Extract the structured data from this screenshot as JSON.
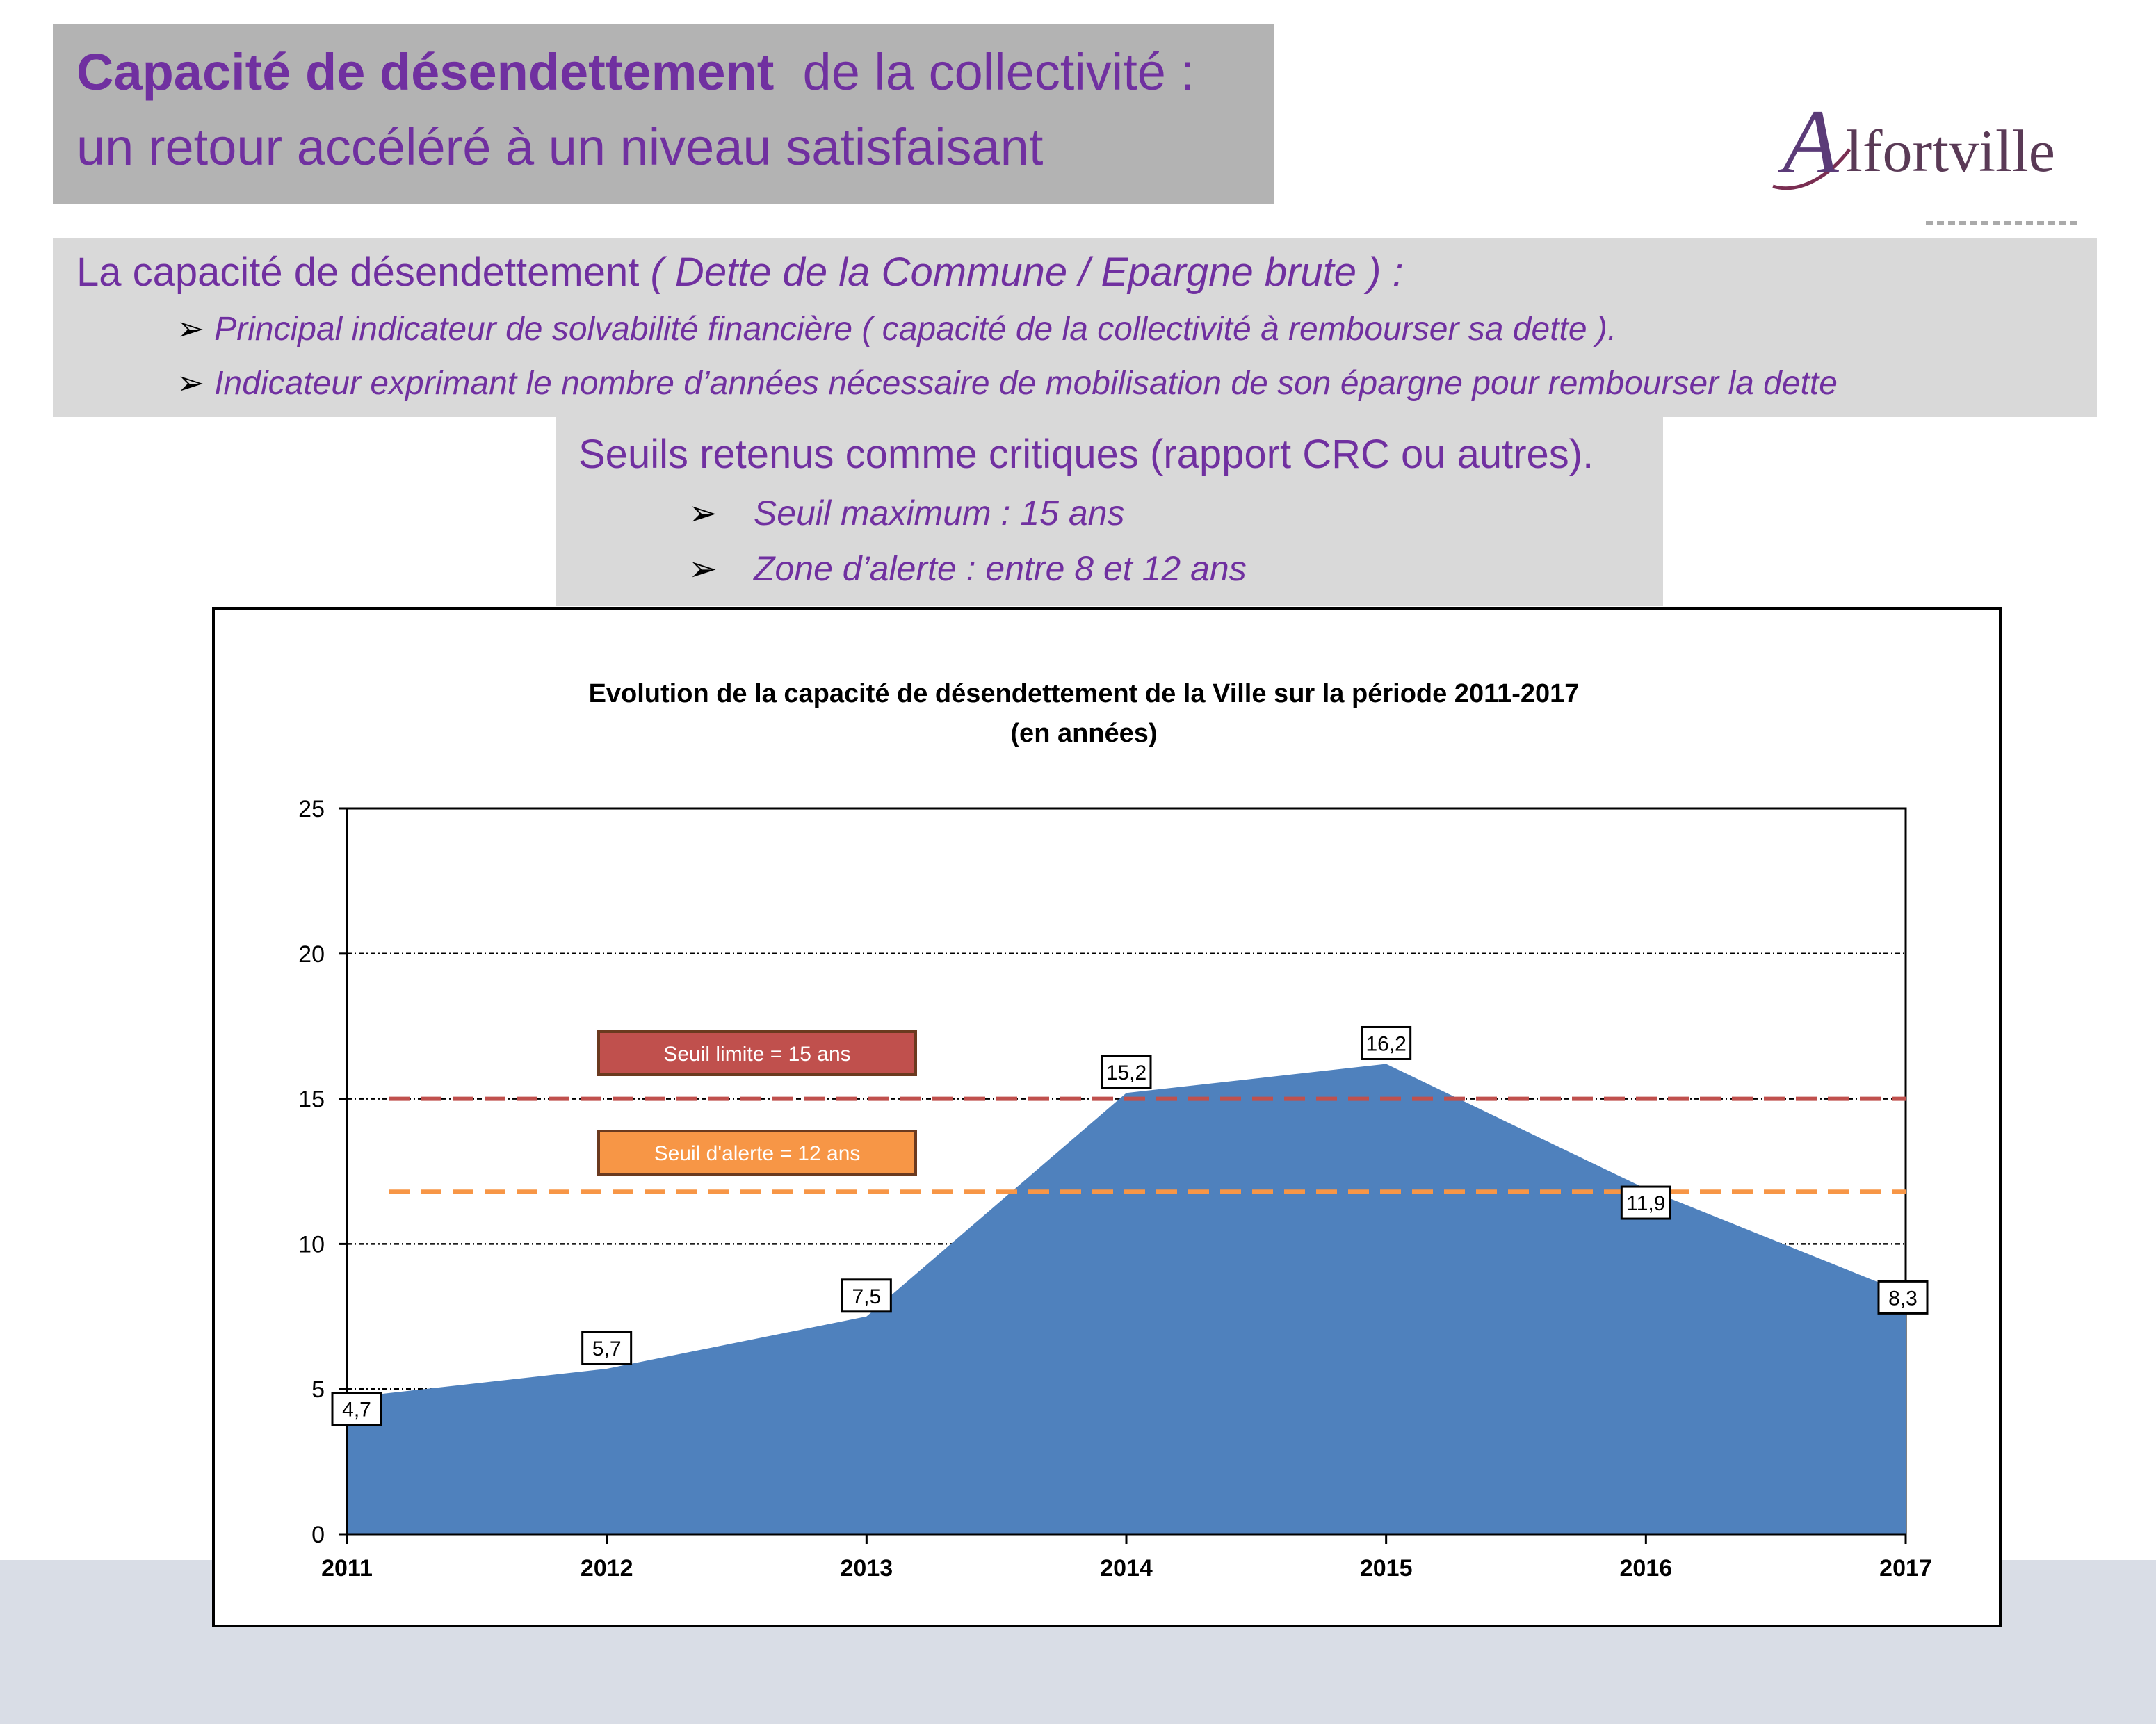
{
  "header": {
    "title_bold": "Capacité de désendettement",
    "title_rest": "de la collectivité :",
    "title_line2": "un retour accéléré à un niveau satisfaisant"
  },
  "logo": {
    "initial": "A",
    "rest": "lfortville"
  },
  "definition": {
    "lead": "La capacité de désendettement",
    "formula": "( Dette de la Commune / Epargne brute )  :",
    "bullets": [
      "Principal indicateur de solvabilité financière ( capacité de la collectivité à rembourser sa dette ).",
      "Indicateur exprimant le nombre d’années nécessaire de mobilisation de son épargne pour rembourser la dette"
    ]
  },
  "thresholds": {
    "heading": "Seuils retenus comme critiques (rapport CRC ou autres).",
    "items": [
      "Seuil maximum : 15 ans",
      "Zone d’alerte : entre 8 et 12 ans"
    ]
  },
  "chart_data": {
    "type": "area",
    "title": "Evolution de la capacité de désendettement de la Ville sur la période 2011-2017",
    "subtitle": "(en années)",
    "xlabel": "",
    "ylabel": "",
    "categories": [
      "2011",
      "2012",
      "2013",
      "2014",
      "2015",
      "2016",
      "2017"
    ],
    "series": [
      {
        "values": [
          4.7,
          5.7,
          7.5,
          15.2,
          16.2,
          11.9,
          8.3
        ],
        "color": "#4f81bd"
      }
    ],
    "data_labels": [
      "4,7",
      "5,7",
      "7,5",
      "15,2",
      "16,2",
      "11,9",
      "8,3"
    ],
    "ylim": [
      0,
      25
    ],
    "yticks": [
      0,
      5,
      10,
      15,
      20,
      25
    ],
    "grid": true,
    "reference_lines": [
      {
        "label": "Seuil limite = 15 ans",
        "value": 15,
        "color": "#c0504d"
      },
      {
        "label": "Seuil d'alerte = 12 ans",
        "value": 11.8,
        "color": "#f79646"
      }
    ]
  }
}
